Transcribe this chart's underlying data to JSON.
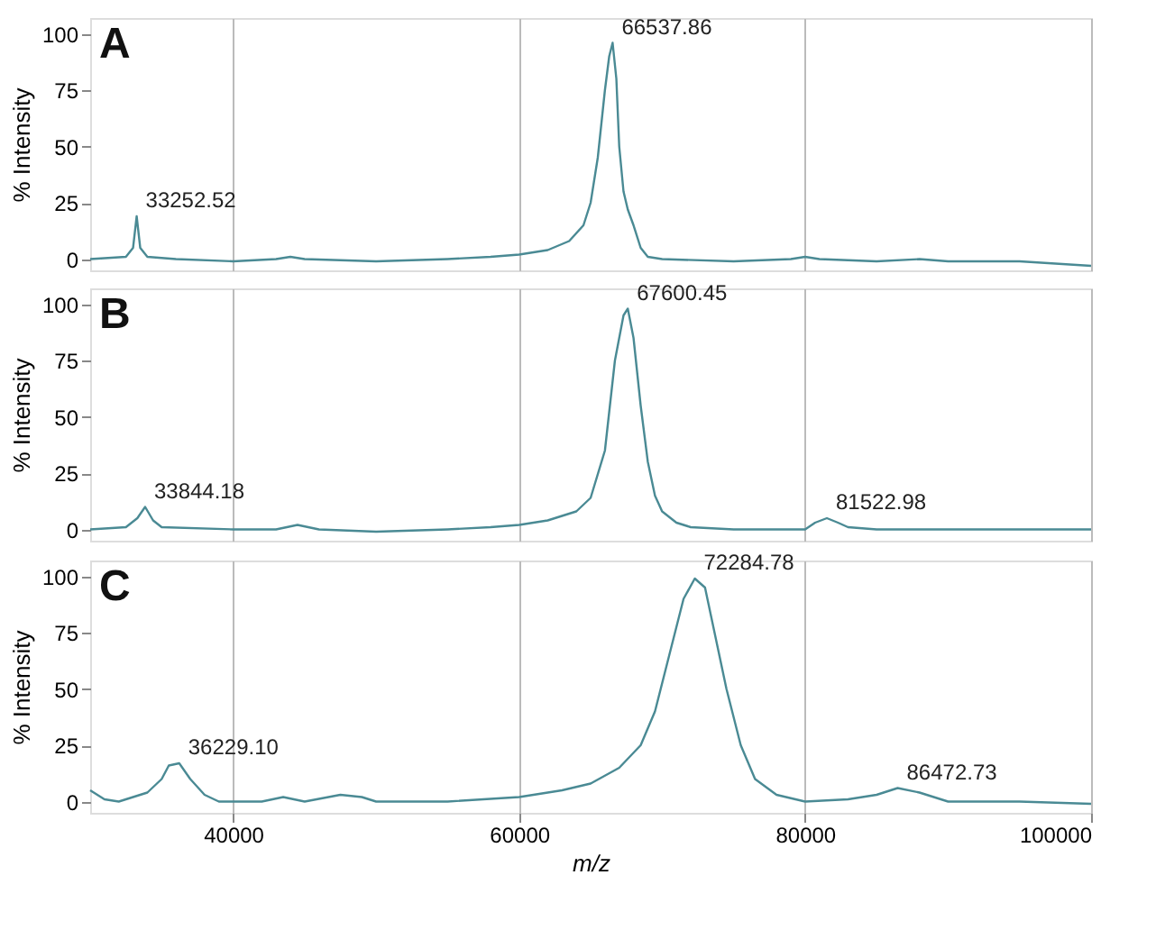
{
  "chart_data": [
    {
      "type": "line",
      "ylabel": "% Intensity",
      "xlim": [
        30000,
        100000
      ],
      "xticks": [
        40000,
        60000,
        80000,
        100000
      ],
      "ylim": [
        -5,
        107
      ],
      "yticks": [
        0,
        25,
        50,
        75,
        100
      ],
      "grid": "x",
      "tick_labels": "y",
      "marker": "none",
      "line_style": "solid",
      "annotations": [
        "A",
        {
          "text": "33252.52",
          "x": 33252.52,
          "y": 19
        },
        {
          "text": "66537.86",
          "x": 66537.86,
          "y": 96
        }
      ],
      "series": [
        {
          "color": "#4a8a94",
          "x": [
            30000,
            32500,
            33000,
            33252,
            33500,
            34000,
            36000,
            40000,
            43000,
            44000,
            45000,
            50000,
            55000,
            58000,
            60000,
            62000,
            63500,
            64500,
            65000,
            65500,
            66000,
            66300,
            66538,
            66800,
            67000,
            67300,
            67600,
            68000,
            68500,
            69000,
            70000,
            75000,
            79000,
            80000,
            81000,
            85000,
            88000,
            90000,
            95000,
            100000
          ],
          "values": [
            0,
            1,
            5,
            19,
            5,
            1,
            0,
            -1,
            0,
            1,
            0,
            -1,
            0,
            1,
            2,
            4,
            8,
            15,
            25,
            45,
            75,
            90,
            96,
            80,
            50,
            30,
            22,
            15,
            5,
            1,
            0,
            -1,
            0,
            1,
            0,
            -1,
            0,
            -1,
            -1,
            -3
          ]
        }
      ]
    },
    {
      "type": "line",
      "ylabel": "% Intensity",
      "xlim": [
        30000,
        100000
      ],
      "xticks": [
        40000,
        60000,
        80000,
        100000
      ],
      "ylim": [
        -5,
        107
      ],
      "yticks": [
        0,
        25,
        50,
        75,
        100
      ],
      "grid": "x",
      "tick_labels": "y",
      "marker": "none",
      "line_style": "solid",
      "annotations": [
        "B",
        {
          "text": "33844.18",
          "x": 33844.18,
          "y": 10
        },
        {
          "text": "67600.45",
          "x": 67600.45,
          "y": 98
        },
        {
          "text": "81522.98",
          "x": 81522.98,
          "y": 5
        }
      ],
      "series": [
        {
          "color": "#4a8a94",
          "x": [
            30000,
            32500,
            33300,
            33844,
            34400,
            35000,
            40000,
            43000,
            44500,
            46000,
            50000,
            55000,
            58000,
            60000,
            62000,
            64000,
            65000,
            66000,
            66700,
            67300,
            67600,
            68000,
            68500,
            69000,
            69500,
            70000,
            71000,
            72000,
            75000,
            80000,
            80700,
            81523,
            82300,
            83000,
            85000,
            90000,
            100000
          ],
          "values": [
            0,
            1,
            5,
            10,
            4,
            1,
            0,
            0,
            2,
            0,
            -1,
            0,
            1,
            2,
            4,
            8,
            14,
            35,
            75,
            95,
            98,
            85,
            55,
            30,
            15,
            8,
            3,
            1,
            0,
            0,
            3,
            5,
            3,
            1,
            0,
            0,
            0
          ]
        }
      ]
    },
    {
      "type": "line",
      "xlabel": "m/z",
      "ylabel": "% Intensity",
      "xlim": [
        30000,
        100000
      ],
      "xticks": [
        40000,
        60000,
        80000,
        100000
      ],
      "ylim": [
        -5,
        107
      ],
      "yticks": [
        0,
        25,
        50,
        75,
        100
      ],
      "grid": "x",
      "marker": "none",
      "line_style": "solid",
      "annotations": [
        "C",
        {
          "text": "36229.10",
          "x": 36229.1,
          "y": 17
        },
        {
          "text": "72284.78",
          "x": 72284.78,
          "y": 99
        },
        {
          "text": "86472.73",
          "x": 86472.73,
          "y": 6
        }
      ],
      "series": [
        {
          "color": "#4a8a94",
          "x": [
            30000,
            31000,
            32000,
            34000,
            35000,
            35500,
            36229,
            37000,
            38000,
            39000,
            42000,
            43500,
            45000,
            47500,
            49000,
            50000,
            55000,
            60000,
            63000,
            65000,
            67000,
            68500,
            69500,
            70500,
            71500,
            72285,
            73000,
            73500,
            74500,
            75500,
            76500,
            78000,
            80000,
            83000,
            85000,
            86473,
            88000,
            90000,
            95000,
            100000
          ],
          "values": [
            5,
            1,
            0,
            4,
            10,
            16,
            17,
            10,
            3,
            0,
            0,
            2,
            0,
            3,
            2,
            0,
            0,
            2,
            5,
            8,
            15,
            25,
            40,
            65,
            90,
            99,
            95,
            80,
            50,
            25,
            10,
            3,
            0,
            1,
            3,
            6,
            4,
            0,
            0,
            -1
          ]
        }
      ]
    }
  ]
}
